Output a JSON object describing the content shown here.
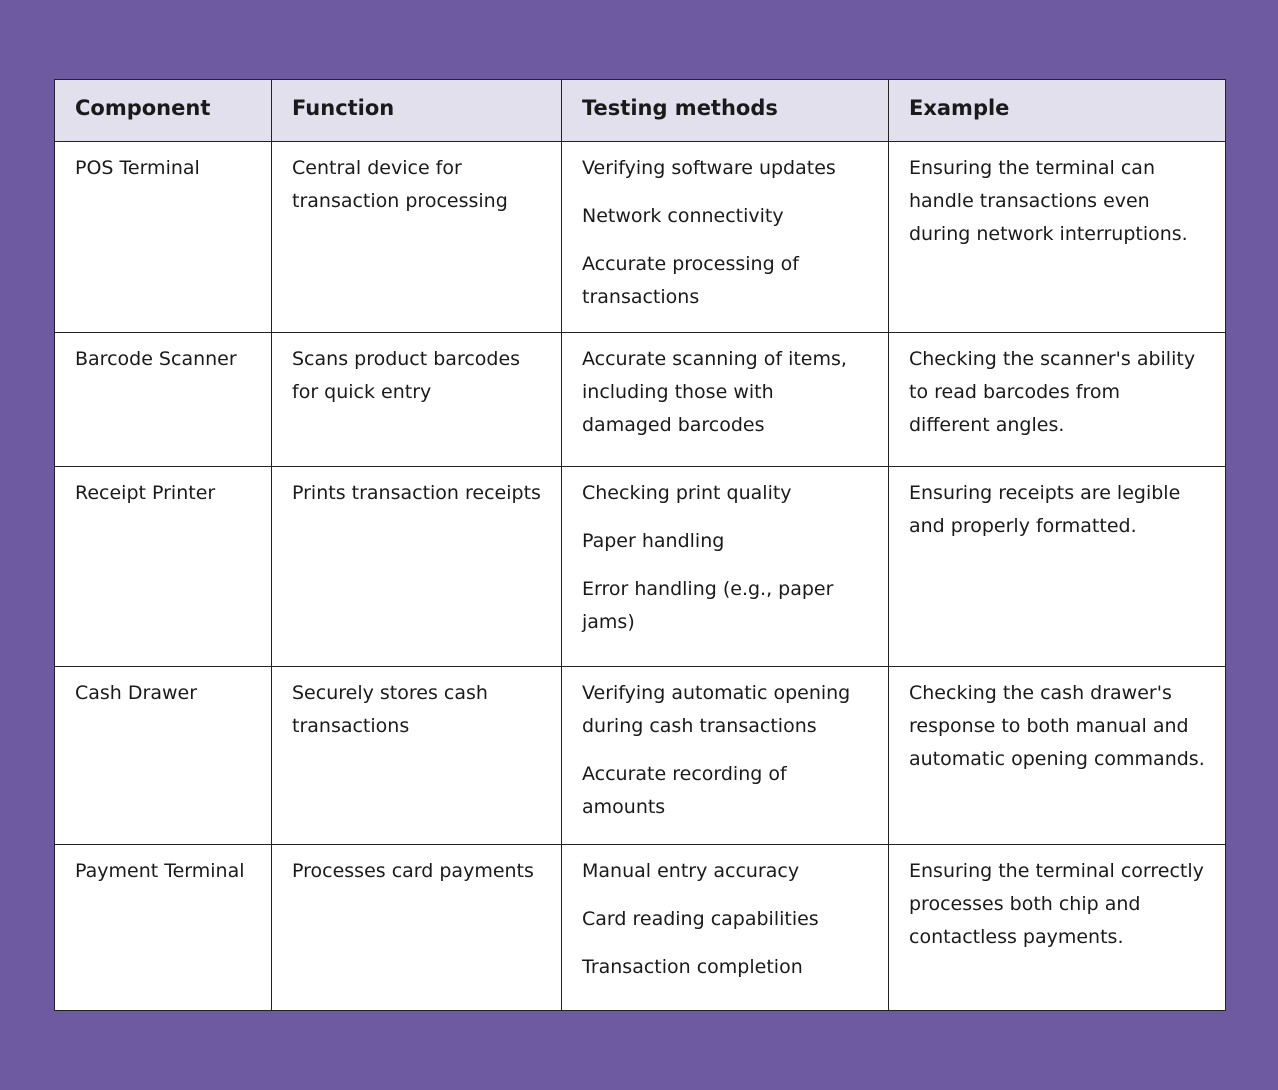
{
  "table": {
    "headers": [
      "Component",
      "Function",
      "Testing methods",
      "Example"
    ],
    "rows": [
      [
        "POS Terminal",
        "Central device for transaction processing",
        [
          "Verifying software updates",
          "Network connectivity",
          "Accurate processing of transactions"
        ],
        "Ensuring the terminal can handle transactions even during network interruptions."
      ],
      [
        "Barcode Scanner",
        "Scans product barcodes for quick entry",
        [
          "Accurate scanning of items, including those with damaged barcodes"
        ],
        "Checking the scanner's ability to read barcodes from different angles."
      ],
      [
        "Receipt Printer",
        "Prints transaction receipts",
        [
          "Checking print quality",
          "Paper handling",
          "Error handling (e.g., paper jams)"
        ],
        "Ensuring receipts are legible and properly formatted."
      ],
      [
        "Cash Drawer",
        "Securely stores cash transactions",
        [
          "Verifying automatic opening during cash transactions",
          "Accurate recording of amounts"
        ],
        "Checking the cash drawer's response to both manual and automatic opening commands."
      ],
      [
        "Payment Terminal",
        "Processes card payments",
        [
          "Manual entry accuracy",
          "Card reading capabilities",
          "Transaction completion"
        ],
        "Ensuring the terminal correctly processes both chip and contactless payments."
      ]
    ]
  }
}
